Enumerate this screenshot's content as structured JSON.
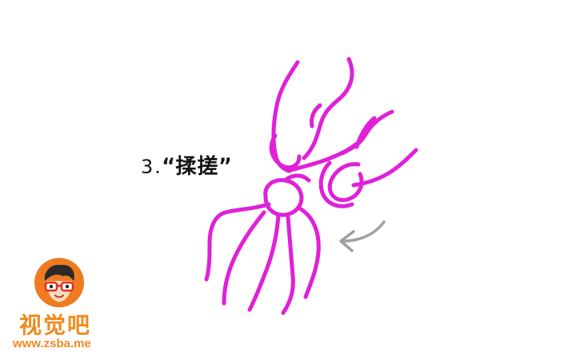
{
  "step": {
    "number": "3.",
    "title": "“揉搓”"
  },
  "illustration": {
    "subject": "hands-rubbing-thumb",
    "stroke_color": "#e020d8",
    "arrow_color": "#a0a0a0",
    "arrow_icon": "curved-arrow-left-icon"
  },
  "logo": {
    "name_cn": "视觉吧",
    "url": "www.zsba.me",
    "badge_color": "#f07a20",
    "text_color": "#f08a1c",
    "badge_icon": "cartoon-face-with-glasses-icon"
  }
}
